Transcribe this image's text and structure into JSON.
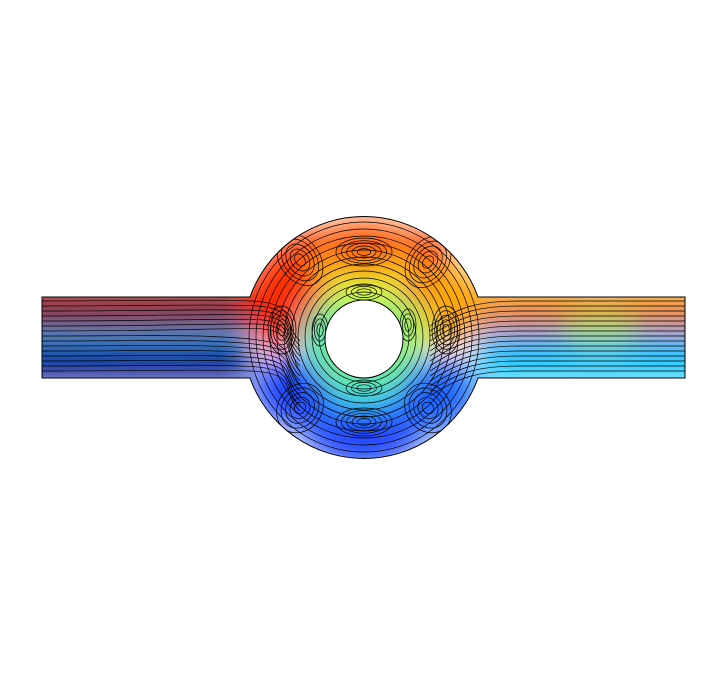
{
  "figure": {
    "kind": "flow-field-plot",
    "colormap": "jet",
    "colormap_stops": [
      "#00007f",
      "#0000ff",
      "#007fff",
      "#00ffff",
      "#7fff7f",
      "#ffff00",
      "#ff7f00",
      "#ff0000",
      "#7f0000"
    ],
    "streamline_color": "#000000",
    "domain_outline_color": "#000000",
    "background": "#ffffff",
    "obstacle_fill": "#ffffff",
    "domain_parts": [
      "inlet-channel",
      "outlet-channel",
      "circular-chamber",
      "central-cylinder"
    ],
    "vortex_count": 8
  }
}
